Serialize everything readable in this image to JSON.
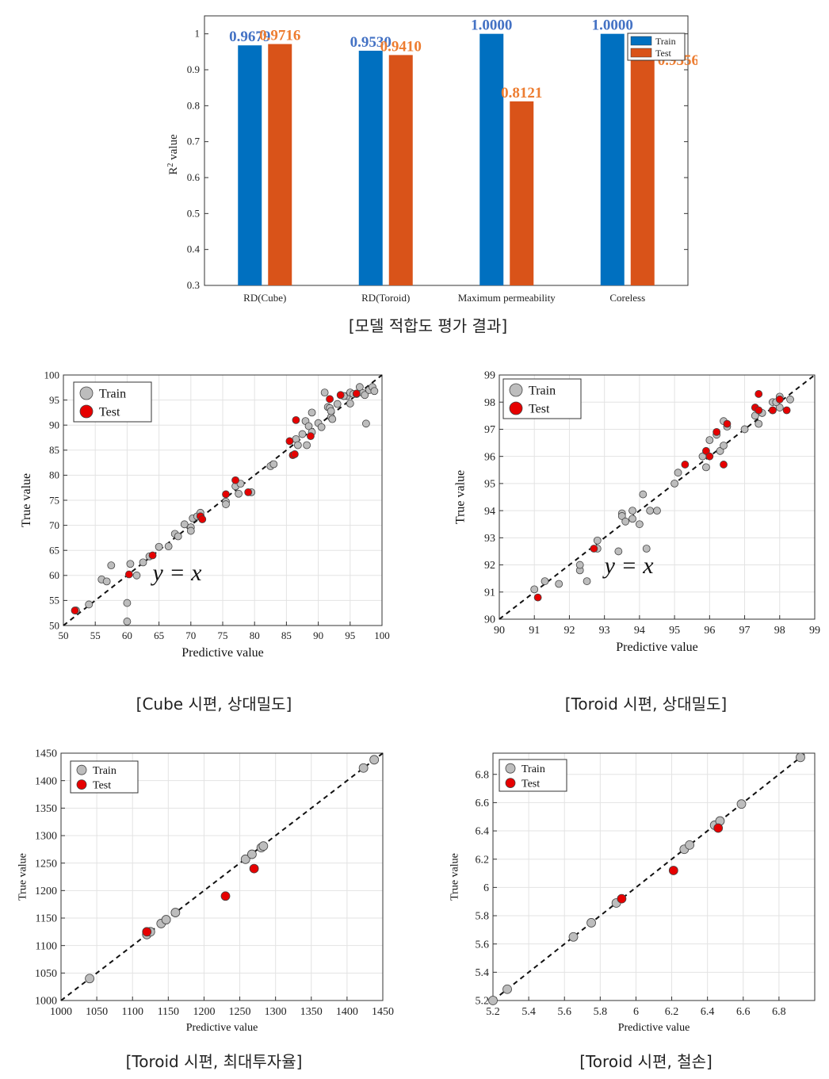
{
  "chart_data": [
    {
      "type": "bar",
      "title": "",
      "ylabel": "R",
      "ylabel_sup": "2",
      "ylabel_suffix": " value",
      "xlabel": "",
      "categories": [
        "RD(Cube)",
        "RD(Toroid)",
        "Maximum permeability",
        "Coreless"
      ],
      "series": [
        {
          "name": "Train",
          "color": "#0070c0",
          "label_color": "#4472c4",
          "values": [
            0.9679,
            0.953,
            1.0,
            1.0
          ],
          "labels": [
            "0.9679",
            "0.9530",
            "1.0000",
            "1.0000"
          ]
        },
        {
          "name": "Test",
          "color": "#d95319",
          "label_color": "#ed7d31",
          "values": [
            0.9716,
            0.941,
            0.8121,
            0.9356
          ],
          "labels": [
            "0.9716",
            "0.9410",
            "0.8121",
            "0.9356"
          ]
        }
      ],
      "ylim": [
        0.3,
        1.05
      ],
      "yticks": [
        0.3,
        0.4,
        0.5,
        0.6,
        0.7,
        0.8,
        0.9,
        1
      ],
      "ytick_labels": [
        "0.3",
        "0.4",
        "0.5",
        "0.6",
        "0.7",
        "0.8",
        "0.9",
        "1"
      ],
      "legend": [
        "Train",
        "Test"
      ],
      "legend_position": "top-right",
      "caption": "[모델 적합도 평가 결과]"
    },
    {
      "type": "scatter",
      "xlabel": "Predictive value",
      "ylabel": "True value",
      "xlim": [
        50,
        100
      ],
      "ylim": [
        50,
        100
      ],
      "xticks": [
        50,
        55,
        60,
        65,
        70,
        75,
        80,
        85,
        90,
        95,
        100
      ],
      "yticks": [
        50,
        55,
        60,
        65,
        70,
        75,
        80,
        85,
        90,
        95,
        100
      ],
      "grid": true,
      "legend": [
        "Train",
        "Test"
      ],
      "legend_position": "top-left",
      "annotation": "y = x",
      "diagonal": true,
      "series": [
        {
          "name": "Train",
          "color": "#bdbdbd",
          "points": [
            [
              52,
              53
            ],
            [
              54,
              54.2
            ],
            [
              56,
              59.2
            ],
            [
              56.8,
              58.8
            ],
            [
              57.5,
              62
            ],
            [
              60,
              54.5
            ],
            [
              60,
              50.8
            ],
            [
              60.5,
              62.3
            ],
            [
              61.5,
              60
            ],
            [
              62.5,
              62.6
            ],
            [
              63.5,
              63.8
            ],
            [
              65,
              65.7
            ],
            [
              66.5,
              65.8
            ],
            [
              67.5,
              68.3
            ],
            [
              68,
              67.8
            ],
            [
              69,
              70.2
            ],
            [
              70,
              69.6
            ],
            [
              70,
              68.9
            ],
            [
              70.3,
              71.4
            ],
            [
              71,
              71.8
            ],
            [
              71.5,
              72.5
            ],
            [
              75.5,
              74.7
            ],
            [
              75.5,
              74.2
            ],
            [
              77,
              77.8
            ],
            [
              77.5,
              76.3
            ],
            [
              77.8,
              78.3
            ],
            [
              79.5,
              76.6
            ],
            [
              82.5,
              81.8
            ],
            [
              83,
              82.2
            ],
            [
              86.5,
              87.2
            ],
            [
              86.8,
              86
            ],
            [
              87.5,
              88.2
            ],
            [
              88,
              90.8
            ],
            [
              88.2,
              86
            ],
            [
              88.5,
              89.8
            ],
            [
              89,
              92.5
            ],
            [
              89,
              88.6
            ],
            [
              90,
              90.4
            ],
            [
              90.5,
              89.6
            ],
            [
              91,
              96.5
            ],
            [
              91.5,
              93.6
            ],
            [
              91.8,
              93.4
            ],
            [
              92,
              91.6
            ],
            [
              92,
              92.8
            ],
            [
              93,
              94.2
            ],
            [
              93.5,
              96
            ],
            [
              94.5,
              95.8
            ],
            [
              95,
              96.5
            ],
            [
              95.5,
              96.2
            ],
            [
              96,
              96.2
            ],
            [
              96.5,
              97.6
            ],
            [
              97,
              96.4
            ],
            [
              97.3,
              96
            ],
            [
              97.5,
              90.3
            ],
            [
              98,
              97
            ],
            [
              98.5,
              97.6
            ],
            [
              98.8,
              96.8
            ],
            [
              95,
              94.3
            ],
            [
              92.2,
              91.2
            ],
            [
              94,
              95.8
            ]
          ]
        },
        {
          "name": "Test",
          "color": "#e60000",
          "points": [
            [
              51.8,
              53
            ],
            [
              60.3,
              60.2
            ],
            [
              64,
              64
            ],
            [
              71.5,
              71.8
            ],
            [
              71.8,
              71.2
            ],
            [
              75.5,
              76.2
            ],
            [
              77,
              79
            ],
            [
              79,
              76.6
            ],
            [
              85.5,
              86.8
            ],
            [
              86,
              84
            ],
            [
              86.5,
              91
            ],
            [
              88.8,
              87.8
            ],
            [
              91.8,
              95.2
            ],
            [
              93.5,
              96
            ],
            [
              96,
              96.3
            ],
            [
              86.3,
              84.2
            ]
          ]
        }
      ],
      "caption": "[Cube 시편, 상대밀도]"
    },
    {
      "type": "scatter",
      "xlabel": "Predictive value",
      "ylabel": "True value",
      "xlim": [
        90,
        99
      ],
      "ylim": [
        90,
        99
      ],
      "xticks": [
        90,
        91,
        92,
        93,
        94,
        95,
        96,
        97,
        98,
        99
      ],
      "yticks": [
        90,
        91,
        92,
        93,
        94,
        95,
        96,
        97,
        98,
        99
      ],
      "grid": true,
      "legend": [
        "Train",
        "Test"
      ],
      "legend_position": "top-left",
      "annotation": "y = x",
      "diagonal": true,
      "series": [
        {
          "name": "Train",
          "color": "#bdbdbd",
          "points": [
            [
              91,
              91.1
            ],
            [
              91.3,
              91.4
            ],
            [
              91.7,
              91.3
            ],
            [
              92.3,
              91.8
            ],
            [
              92.3,
              92
            ],
            [
              92.5,
              91.4
            ],
            [
              92.8,
              92.9
            ],
            [
              92.8,
              92.6
            ],
            [
              93.4,
              92.5
            ],
            [
              93.5,
              93.9
            ],
            [
              93.5,
              93.8
            ],
            [
              93.6,
              93.6
            ],
            [
              93.8,
              93.7
            ],
            [
              93.8,
              94.0
            ],
            [
              94.1,
              94.6
            ],
            [
              94,
              93.5
            ],
            [
              94.2,
              92.6
            ],
            [
              94.3,
              94
            ],
            [
              94.5,
              94
            ],
            [
              95,
              95
            ],
            [
              95.1,
              95.4
            ],
            [
              95.8,
              96
            ],
            [
              95.9,
              95.6
            ],
            [
              96,
              96.6
            ],
            [
              96.2,
              96.8
            ],
            [
              96.3,
              96.2
            ],
            [
              96.4,
              96.4
            ],
            [
              96.4,
              97.3
            ],
            [
              96.5,
              97.1
            ],
            [
              97,
              97
            ],
            [
              97.3,
              97.5
            ],
            [
              97.4,
              97.2
            ],
            [
              97.5,
              97.6
            ],
            [
              97.8,
              97.7
            ],
            [
              97.8,
              98
            ],
            [
              98,
              98.2
            ],
            [
              98,
              97.8
            ],
            [
              98.3,
              98.1
            ],
            [
              97.9,
              98
            ]
          ]
        },
        {
          "name": "Test",
          "color": "#e60000",
          "points": [
            [
              91.1,
              90.8
            ],
            [
              92.7,
              92.6
            ],
            [
              95.3,
              95.7
            ],
            [
              95.9,
              96.2
            ],
            [
              96,
              96
            ],
            [
              96.2,
              96.9
            ],
            [
              96.4,
              95.7
            ],
            [
              96.5,
              97.2
            ],
            [
              97.3,
              97.8
            ],
            [
              97.4,
              98.3
            ],
            [
              97.4,
              97.7
            ],
            [
              97.8,
              97.7
            ],
            [
              98,
              98.1
            ],
            [
              98.2,
              97.7
            ]
          ]
        }
      ],
      "caption": "[Toroid 시편, 상대밀도]"
    },
    {
      "type": "scatter",
      "xlabel": "Predictive value",
      "ylabel": "True value",
      "xlim": [
        1000,
        1450
      ],
      "ylim": [
        1000,
        1450
      ],
      "xticks": [
        1000,
        1050,
        1100,
        1150,
        1200,
        1250,
        1300,
        1350,
        1400,
        1450
      ],
      "yticks": [
        1000,
        1050,
        1100,
        1150,
        1200,
        1250,
        1300,
        1350,
        1400,
        1450
      ],
      "grid": true,
      "legend": [
        "Train",
        "Test"
      ],
      "legend_position": "top-left",
      "diagonal": true,
      "series": [
        {
          "name": "Train",
          "color": "#bdbdbd",
          "points": [
            [
              1040,
              1040
            ],
            [
              1120,
              1120
            ],
            [
              1125,
              1125
            ],
            [
              1140,
              1140
            ],
            [
              1147,
              1147
            ],
            [
              1160,
              1160
            ],
            [
              1258,
              1257
            ],
            [
              1267,
              1266
            ],
            [
              1280,
              1278
            ],
            [
              1283,
              1281
            ],
            [
              1423,
              1423
            ],
            [
              1438,
              1438
            ]
          ]
        },
        {
          "name": "Test",
          "color": "#e60000",
          "points": [
            [
              1120,
              1125
            ],
            [
              1230,
              1190
            ],
            [
              1270,
              1240
            ]
          ]
        }
      ],
      "caption": "[Toroid 시편, 최대투자율]"
    },
    {
      "type": "scatter",
      "xlabel": "Predictive value",
      "ylabel": "True value",
      "xlim": [
        5.2,
        7.0
      ],
      "ylim": [
        5.2,
        6.95
      ],
      "xticks": [
        5.2,
        5.4,
        5.6,
        5.8,
        6,
        6.2,
        6.4,
        6.6,
        6.8
      ],
      "xtick_labels": [
        "5.2",
        "5.4",
        "5.6",
        "5.8",
        "6",
        "6.2",
        "6.4",
        "6.6",
        "6.8"
      ],
      "yticks": [
        5.2,
        5.4,
        5.6,
        5.8,
        6,
        6.2,
        6.4,
        6.6,
        6.8
      ],
      "ytick_labels": [
        "5.2",
        "5.4",
        "5.6",
        "5.8",
        "6",
        "6.2",
        "6.4",
        "6.6",
        "6.8"
      ],
      "grid": true,
      "legend": [
        "Train",
        "Test"
      ],
      "legend_position": "top-left",
      "diagonal": true,
      "series": [
        {
          "name": "Train",
          "color": "#bdbdbd",
          "points": [
            [
              5.2,
              5.2
            ],
            [
              5.28,
              5.28
            ],
            [
              5.65,
              5.65
            ],
            [
              5.75,
              5.75
            ],
            [
              5.89,
              5.89
            ],
            [
              6.27,
              6.27
            ],
            [
              6.3,
              6.3
            ],
            [
              6.44,
              6.44
            ],
            [
              6.47,
              6.47
            ],
            [
              6.59,
              6.59
            ],
            [
              6.92,
              6.92
            ]
          ]
        },
        {
          "name": "Test",
          "color": "#e60000",
          "points": [
            [
              5.92,
              5.92
            ],
            [
              6.21,
              6.12
            ],
            [
              6.46,
              6.42
            ]
          ]
        }
      ],
      "caption": "[Toroid 시편, 철손]"
    }
  ]
}
